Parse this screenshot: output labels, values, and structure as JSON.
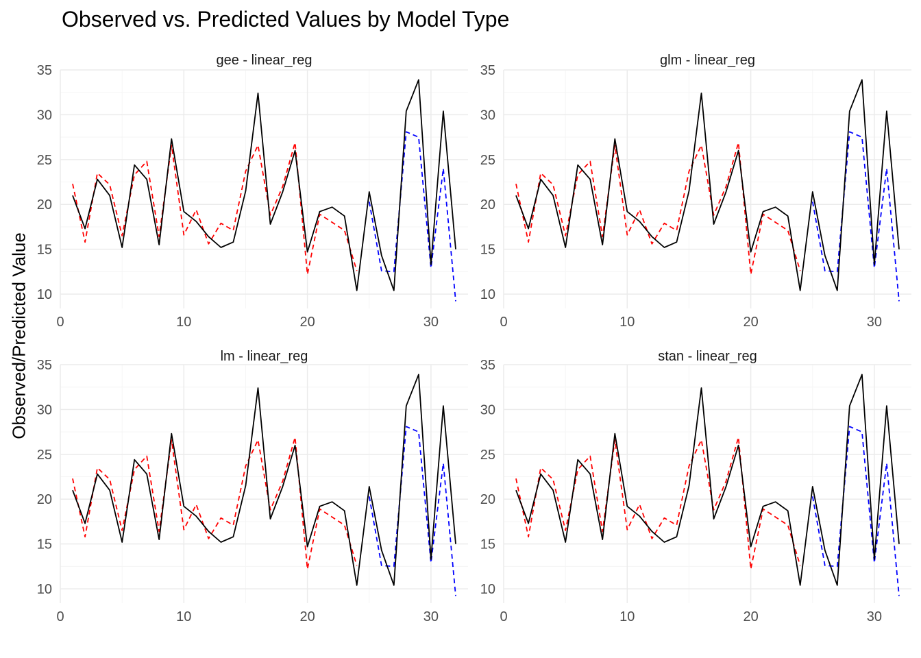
{
  "title": "Observed vs. Predicted Values by Model Type",
  "ylabel": "Observed/Predicted Value",
  "colors": {
    "observed": "#000000",
    "predicted_train": "#ff0000",
    "predicted_test": "#0000ff",
    "grid_major": "#ebebeb",
    "grid_minor": "#f5f5f5"
  },
  "chart_data": {
    "type": "line",
    "x_ticks": [
      0,
      10,
      20,
      30
    ],
    "y_ticks": [
      10,
      15,
      20,
      25,
      30,
      35
    ],
    "xlim": [
      0,
      33
    ],
    "ylim": [
      8.4,
      35
    ],
    "grid": true,
    "x": [
      1,
      2,
      3,
      4,
      5,
      6,
      7,
      8,
      9,
      10,
      11,
      12,
      13,
      14,
      15,
      16,
      17,
      18,
      19,
      20,
      21,
      22,
      23,
      24,
      25,
      26,
      27,
      28,
      29,
      30,
      31,
      32
    ],
    "observed": [
      21.0,
      17.3,
      22.8,
      21.0,
      15.2,
      24.4,
      22.8,
      15.5,
      27.3,
      19.2,
      18.1,
      16.4,
      15.2,
      15.8,
      21.5,
      32.4,
      17.8,
      21.4,
      26.0,
      14.7,
      19.2,
      19.7,
      18.7,
      10.4,
      21.4,
      14.3,
      10.4,
      30.4,
      33.9,
      13.3,
      30.4,
      15.0
    ],
    "predicted_train_x": [
      1,
      2,
      3,
      4,
      5,
      6,
      7,
      8,
      9,
      10,
      11,
      12,
      13,
      14,
      15,
      16,
      17,
      18,
      19,
      20,
      21,
      22,
      23,
      24
    ],
    "predicted_train": [
      22.3,
      15.8,
      23.5,
      22.2,
      16.5,
      23.3,
      24.8,
      16.4,
      26.6,
      16.6,
      19.4,
      15.6,
      17.9,
      17.1,
      23.7,
      26.6,
      18.8,
      22.0,
      26.9,
      12.2,
      18.9,
      18.0,
      17.1,
      12.6
    ],
    "predicted_test_x": [
      25,
      26,
      27,
      28,
      29,
      30,
      31,
      32
    ],
    "predicted_test": [
      20.3,
      12.6,
      12.5,
      28.1,
      27.5,
      12.9,
      24.0,
      9.2
    ],
    "panels": [
      {
        "label": "gee - linear_reg"
      },
      {
        "label": "glm - linear_reg"
      },
      {
        "label": "lm - linear_reg"
      },
      {
        "label": "stan - linear_reg"
      }
    ]
  }
}
